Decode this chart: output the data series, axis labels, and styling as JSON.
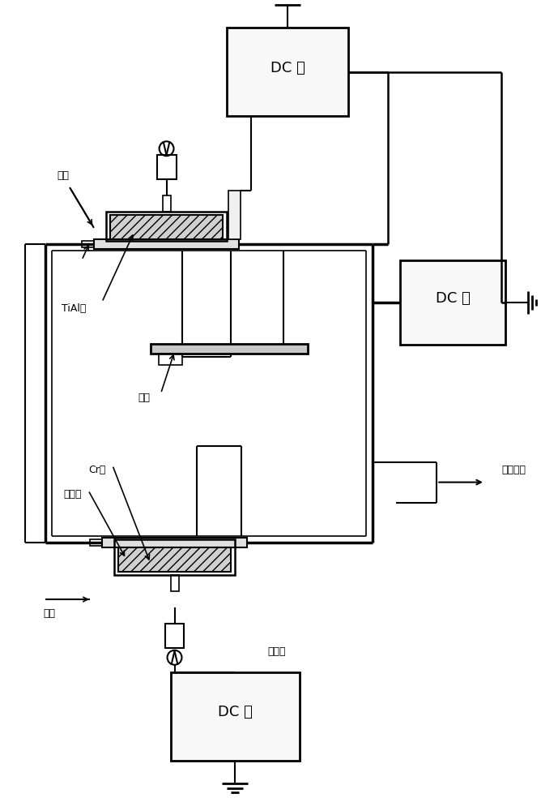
{
  "bg_color": "#ffffff",
  "labels": {
    "dc_top": "DC 源",
    "dc_right": "DC 源",
    "dc_bottom": "DC 源",
    "gas_top": "气体",
    "gas_bottom": "气体",
    "tial": "TiAl靶",
    "component": "零件",
    "filter": "过滤器",
    "cr": "Cr靶",
    "trigger": "触发器",
    "pump": "泵吸系统"
  },
  "font_size": 9,
  "font_size_dc": 13
}
